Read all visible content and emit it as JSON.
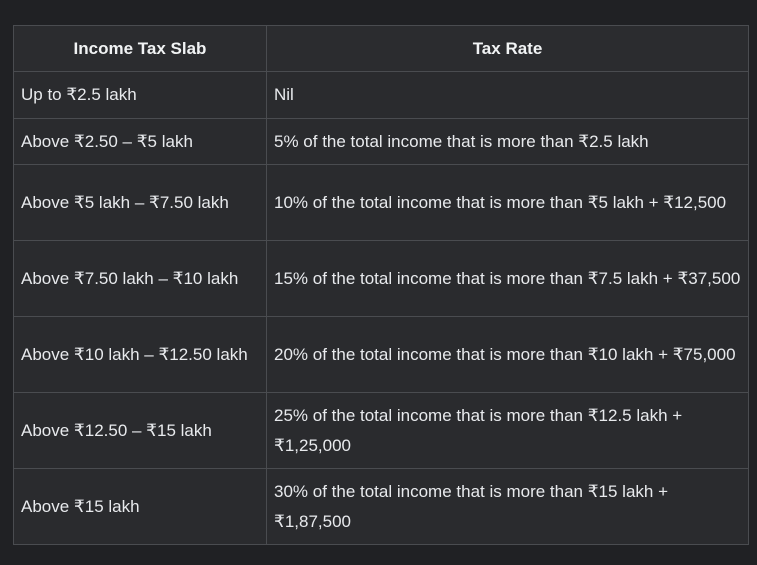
{
  "table": {
    "headers": [
      "Income Tax Slab",
      "Tax Rate"
    ],
    "rows": [
      {
        "slab": "Up to ₹2.5 lakh",
        "rate": "Nil"
      },
      {
        "slab": "Above ₹2.50 – ₹5 lakh",
        "rate": "5% of the total income that is more than ₹2.5 lakh"
      },
      {
        "slab": "Above ₹5 lakh – ₹7.50 lakh",
        "rate": "10% of the total income that is more than ₹5 lakh + ₹12,500"
      },
      {
        "slab": "Above ₹7.50 lakh – ₹10 lakh",
        "rate": "15% of the total income that is more than ₹7.5 lakh + ₹37,500"
      },
      {
        "slab": "Above ₹10 lakh – ₹12.50 lakh",
        "rate": "20% of the total income that is more than ₹10 lakh + ₹75,000"
      },
      {
        "slab": "Above ₹12.50 – ₹15 lakh",
        "rate": "25% of the total income that is more than ₹12.5 lakh + ₹1,25,000"
      },
      {
        "slab": "Above ₹15 lakh",
        "rate": "30% of the total income that is more than ₹15 lakh + ₹1,87,500"
      }
    ]
  }
}
